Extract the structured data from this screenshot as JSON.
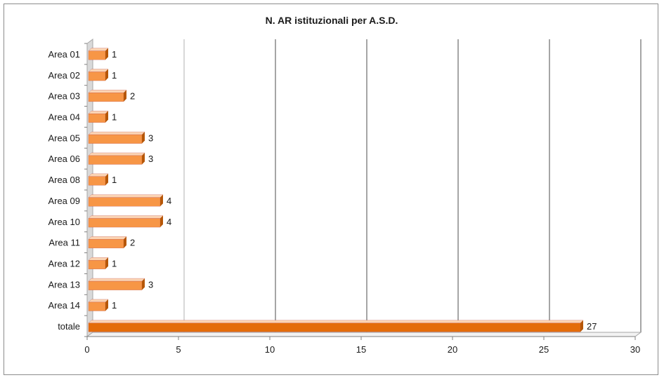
{
  "chart_data": {
    "type": "bar",
    "orientation": "horizontal",
    "title": "N. AR istituzionali per A.S.D.",
    "categories": [
      "Area 01",
      "Area 02",
      "Area 03",
      "Area 04",
      "Area 05",
      "Area 06",
      "Area 08",
      "Area 09",
      "Area 10",
      "Area 11",
      "Area 12",
      "Area 13",
      "Area 14",
      "totale"
    ],
    "values": [
      1,
      1,
      2,
      1,
      3,
      3,
      1,
      4,
      4,
      2,
      1,
      3,
      1,
      27
    ],
    "x_ticks": [
      0,
      5,
      10,
      15,
      20,
      25,
      30
    ],
    "xlim": [
      0,
      30
    ],
    "xlabel": "",
    "ylabel": "",
    "grid": true,
    "legend": "none",
    "colors": {
      "bar": "#f79646",
      "bar_highlight": "#e46c0a",
      "bar_side": "#b65708",
      "gridline": "#7f7f7f",
      "wall": "#a6a6a6"
    }
  }
}
